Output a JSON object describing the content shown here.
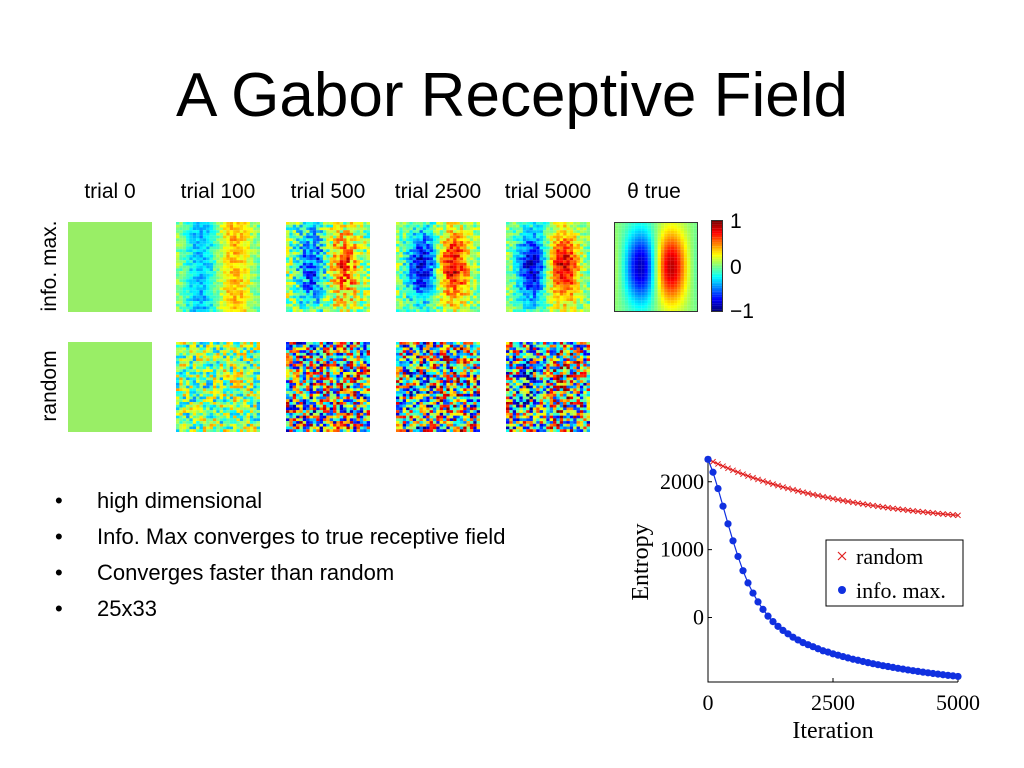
{
  "title": "A Gabor Receptive Field",
  "figure": {
    "column_labels": [
      "trial 0",
      "trial 100",
      "trial 500",
      "trial 2500",
      "trial 5000",
      "θ true"
    ],
    "row_labels": [
      "info. max.",
      "random"
    ],
    "colorbar": {
      "max": "1",
      "mid": "0",
      "min": "−1"
    },
    "colors": {
      "trial0_fill": "#99ee66"
    }
  },
  "bullets": [
    "high dimensional",
    "Info. Max converges to true receptive field",
    "Converges faster than random",
    "25x33"
  ],
  "bullet_char": "•",
  "chart_data": {
    "type": "scatter",
    "xlabel": "Iteration",
    "ylabel": "Entropy",
    "xlim": [
      0,
      5000
    ],
    "ylim": [
      -950,
      2350
    ],
    "x_ticks": [
      "0",
      "2500",
      "5000"
    ],
    "y_ticks": [
      "0",
      "1000",
      "2000"
    ],
    "grid": false,
    "legend_position": "right",
    "series": [
      {
        "name": "random",
        "marker": "x",
        "color": "#e02020",
        "x": [
          0,
          100,
          200,
          300,
          400,
          500,
          600,
          700,
          800,
          900,
          1000,
          1100,
          1200,
          1300,
          1400,
          1500,
          1600,
          1700,
          1800,
          1900,
          2000,
          2100,
          2200,
          2300,
          2400,
          2500,
          2600,
          2700,
          2800,
          2900,
          3000,
          3100,
          3200,
          3300,
          3400,
          3500,
          3600,
          3700,
          3800,
          3900,
          4000,
          4100,
          4200,
          4300,
          4400,
          4500,
          4600,
          4700,
          4800,
          4900,
          5000
        ],
        "y": [
          2330,
          2295,
          2262,
          2230,
          2199,
          2169,
          2140,
          2112,
          2085,
          2059,
          2034,
          2010,
          1987,
          1965,
          1943,
          1922,
          1902,
          1883,
          1864,
          1846,
          1829,
          1812,
          1796,
          1780,
          1765,
          1750,
          1736,
          1722,
          1709,
          1696,
          1684,
          1672,
          1660,
          1649,
          1638,
          1627,
          1617,
          1607,
          1598,
          1589,
          1580,
          1571,
          1563,
          1555,
          1547,
          1540,
          1532,
          1525,
          1518,
          1512,
          1505
        ]
      },
      {
        "name": "info. max.",
        "marker": "o",
        "color": "#1030e0",
        "x": [
          0,
          100,
          200,
          300,
          400,
          500,
          600,
          700,
          800,
          900,
          1000,
          1100,
          1200,
          1300,
          1400,
          1500,
          1600,
          1700,
          1800,
          1900,
          2000,
          2100,
          2200,
          2300,
          2400,
          2500,
          2600,
          2700,
          2800,
          2900,
          3000,
          3100,
          3200,
          3300,
          3400,
          3500,
          3600,
          3700,
          3800,
          3900,
          4000,
          4100,
          4200,
          4300,
          4400,
          4500,
          4600,
          4700,
          4800,
          4900,
          5000
        ],
        "y": [
          2330,
          2140,
          1900,
          1640,
          1380,
          1130,
          900,
          690,
          510,
          360,
          230,
          120,
          20,
          -60,
          -130,
          -190,
          -240,
          -290,
          -330,
          -370,
          -400,
          -430,
          -460,
          -490,
          -510,
          -535,
          -555,
          -575,
          -595,
          -615,
          -630,
          -648,
          -665,
          -680,
          -695,
          -710,
          -722,
          -735,
          -748,
          -760,
          -772,
          -783,
          -794,
          -805,
          -815,
          -825,
          -834,
          -843,
          -852,
          -860,
          -868
        ]
      }
    ]
  }
}
